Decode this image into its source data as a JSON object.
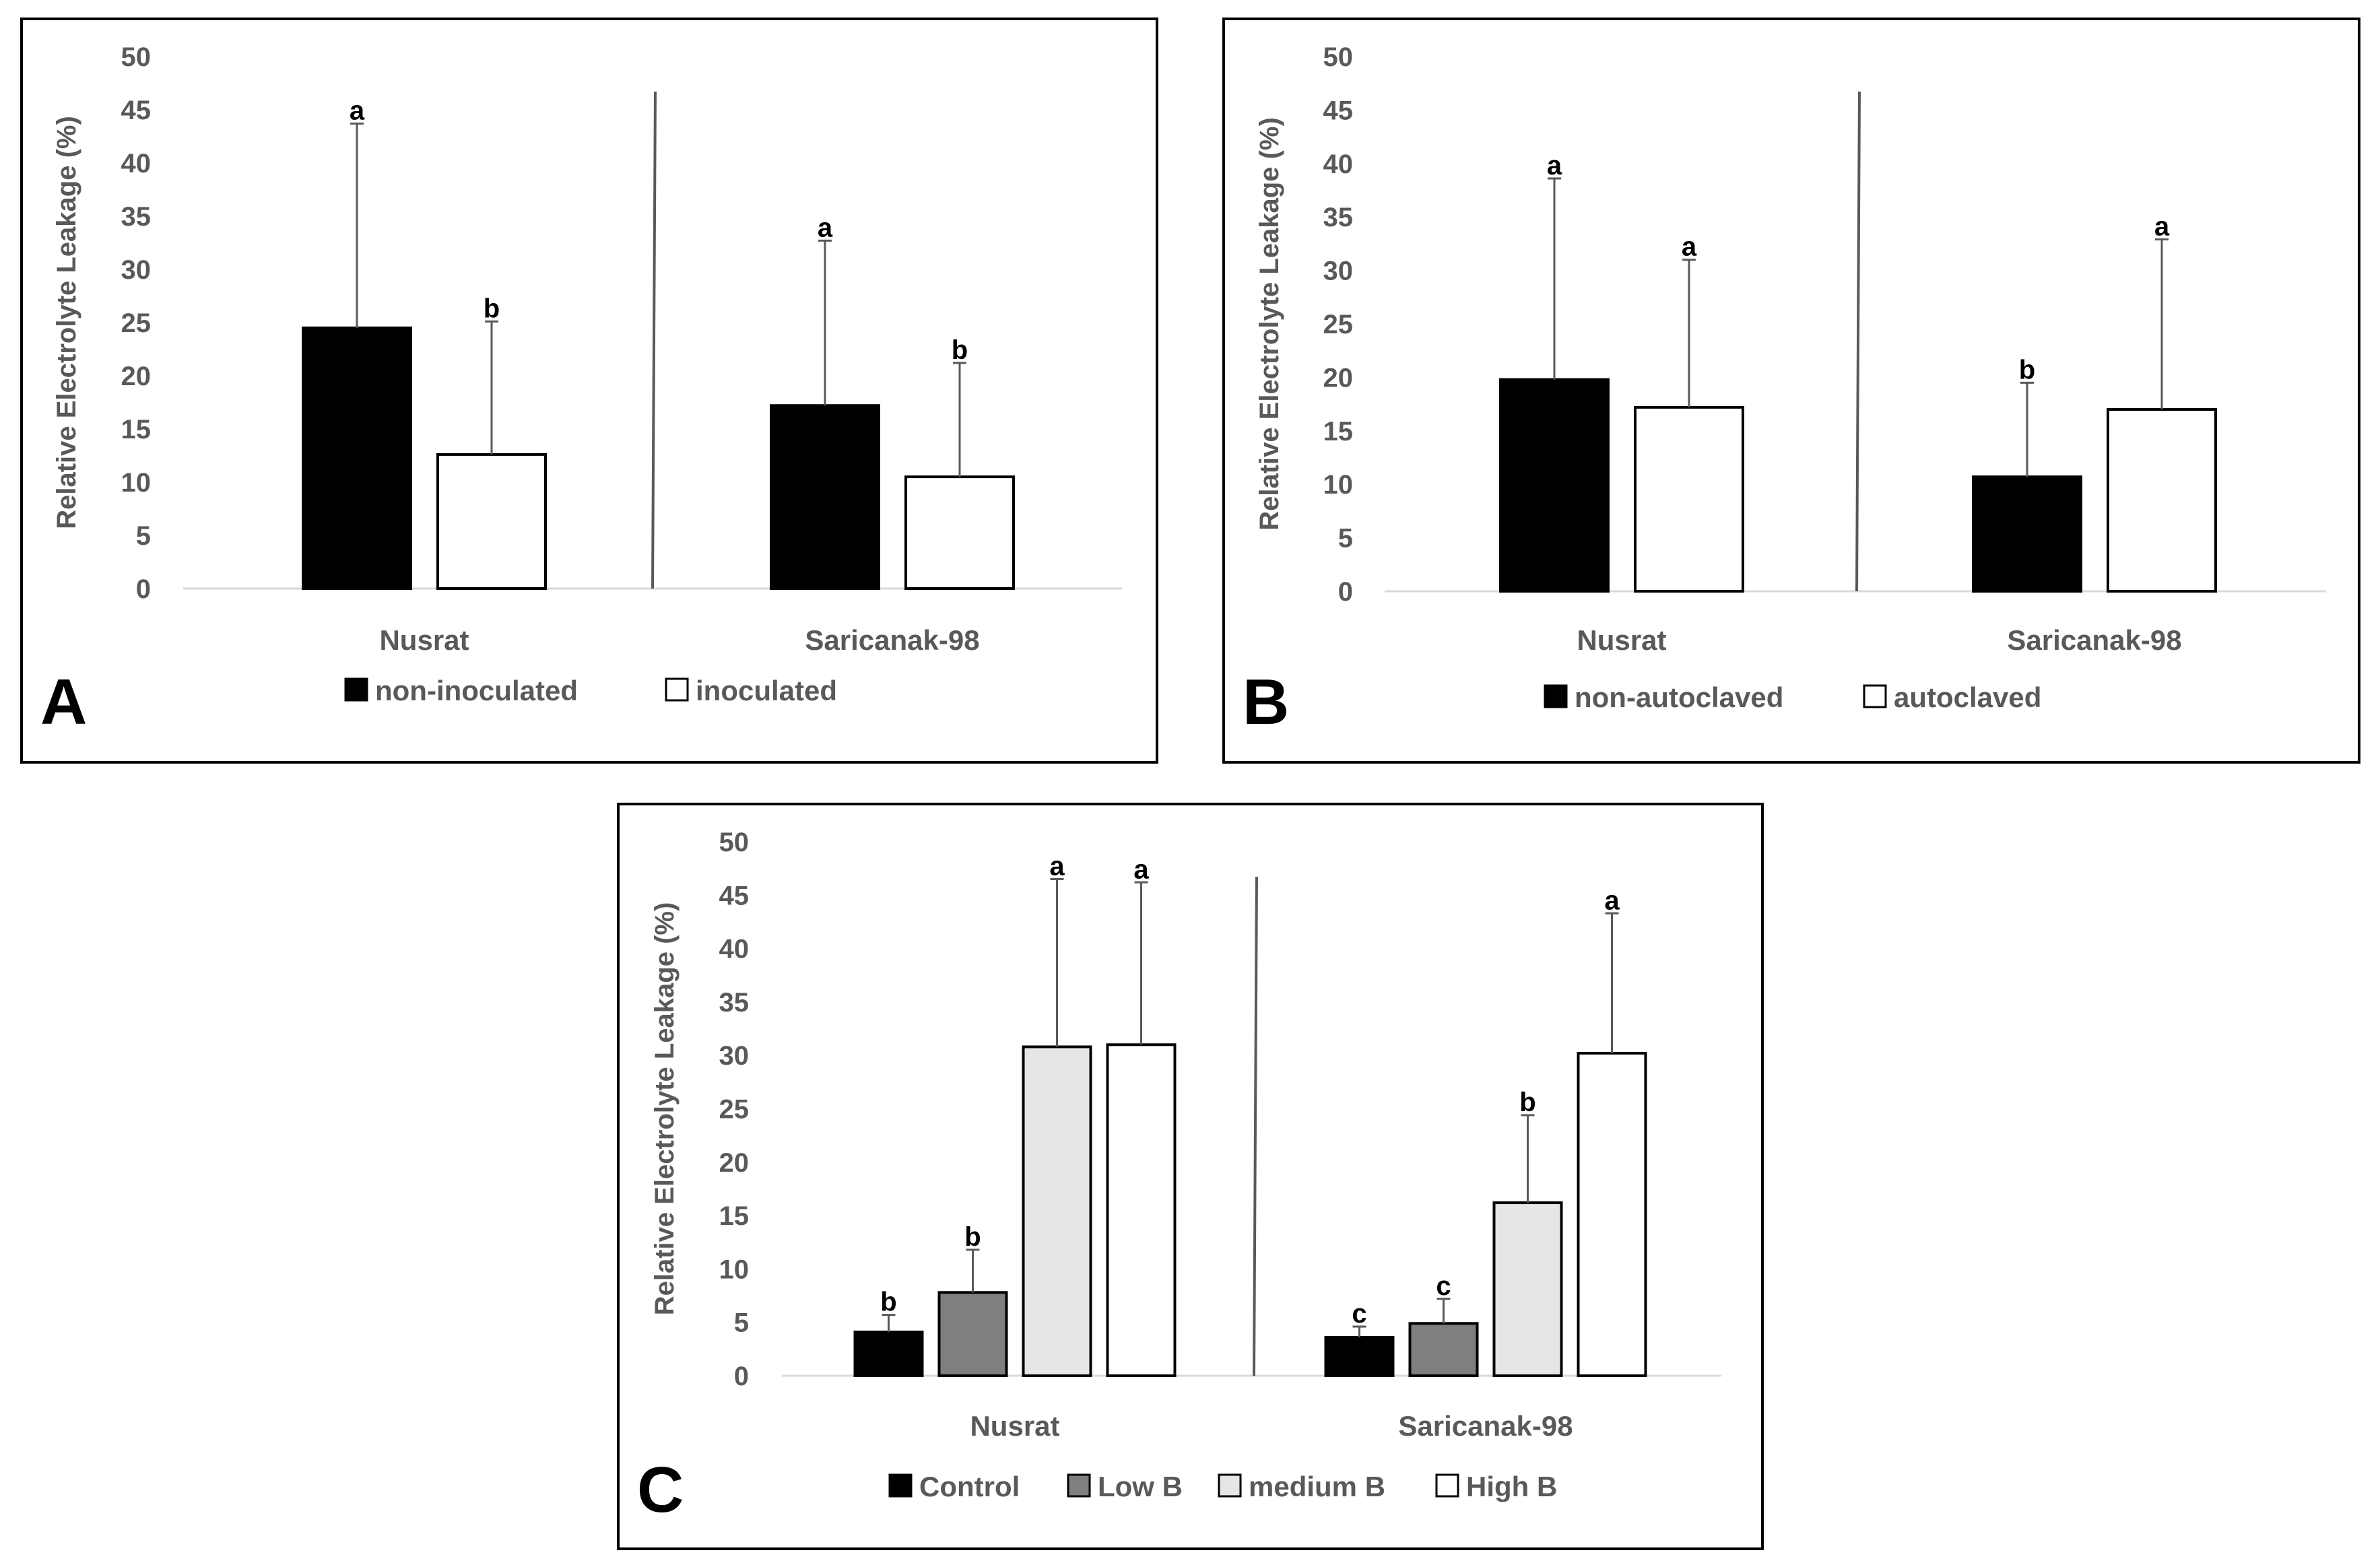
{
  "figure": "Relative electrolyte leakage, three panels",
  "colors": {
    "black": "#000000",
    "dark_gray": "#7f7f7f",
    "light_gray": "#e6e6e6",
    "white": "#ffffff",
    "axis_text": "#595959",
    "axis_line": "#d9d9d9",
    "separator": "#595959",
    "frame": "#000000"
  },
  "chart_data": [
    {
      "panel_label": "A",
      "type": "bar",
      "ylabel": "Relative Electrolyte Leakage (%)",
      "ylim": [
        0,
        50
      ],
      "yticks": [
        0,
        5,
        10,
        15,
        20,
        25,
        30,
        35,
        40,
        45,
        50
      ],
      "categories": [
        "Nusrat",
        "Saricanak-98"
      ],
      "legend_position": "bottom",
      "series": [
        {
          "name": "non-inoculated",
          "color": "#000000",
          "values": [
            24.5,
            17.2
          ],
          "errors": [
            19.2,
            15.5
          ],
          "letters": [
            "a",
            "a"
          ]
        },
        {
          "name": "inoculated",
          "color": "#ffffff",
          "values": [
            12.6,
            10.5
          ],
          "errors": [
            12.5,
            10.7
          ],
          "letters": [
            "b",
            "b"
          ]
        }
      ]
    },
    {
      "panel_label": "B",
      "type": "bar",
      "ylabel": "Relative Electrolyte Leakage (%)",
      "ylim": [
        0,
        50
      ],
      "yticks": [
        0,
        5,
        10,
        15,
        20,
        25,
        30,
        35,
        40,
        45,
        50
      ],
      "categories": [
        "Nusrat",
        "Saricanak-98"
      ],
      "legend_position": "bottom",
      "series": [
        {
          "name": "non-autoclaved",
          "color": "#000000",
          "values": [
            19.8,
            10.7
          ],
          "errors": [
            18.8,
            8.8
          ],
          "letters": [
            "a",
            "b"
          ]
        },
        {
          "name": "autoclaved",
          "color": "#ffffff",
          "values": [
            17.2,
            17.0
          ],
          "errors": [
            13.8,
            15.9
          ],
          "letters": [
            "a",
            "a"
          ]
        }
      ]
    },
    {
      "panel_label": "C",
      "type": "bar",
      "ylabel": "Relative Electrolyte Leakage (%)",
      "ylim": [
        0,
        50
      ],
      "yticks": [
        0,
        5,
        10,
        15,
        20,
        25,
        30,
        35,
        40,
        45,
        50
      ],
      "categories": [
        "Nusrat",
        "Saricanak-98"
      ],
      "legend_position": "bottom",
      "series": [
        {
          "name": "Control",
          "color": "#000000",
          "values": [
            4.1,
            3.6
          ],
          "errors": [
            1.6,
            1.0
          ],
          "letters": [
            "b",
            "c"
          ]
        },
        {
          "name": "Low B",
          "color": "#7f7f7f",
          "values": [
            7.8,
            4.9
          ],
          "errors": [
            4.0,
            2.3
          ],
          "letters": [
            "b",
            "c"
          ]
        },
        {
          "name": "medium B",
          "color": "#e6e6e6",
          "values": [
            30.8,
            16.2
          ],
          "errors": [
            15.7,
            8.2
          ],
          "letters": [
            "a",
            "b"
          ]
        },
        {
          "name": "High B",
          "color": "#ffffff",
          "values": [
            31.0,
            30.2
          ],
          "errors": [
            15.2,
            13.1
          ],
          "letters": [
            "a",
            "a"
          ]
        }
      ]
    }
  ]
}
